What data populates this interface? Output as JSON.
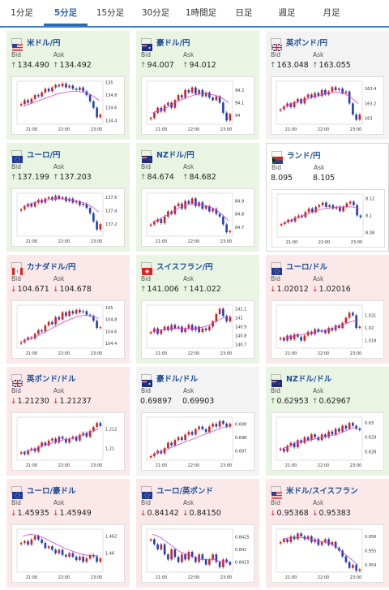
{
  "tabs": [
    {
      "label": "1分足",
      "active": false
    },
    {
      "label": "5分足",
      "active": true
    },
    {
      "label": "15分足",
      "active": false
    },
    {
      "label": "30分足",
      "active": false
    },
    {
      "label": "1時間足",
      "active": false
    },
    {
      "label": "日足",
      "active": false
    },
    {
      "label": "週足",
      "active": false
    },
    {
      "label": "月足",
      "active": false
    }
  ],
  "labels": {
    "bid": "Bid",
    "ask": "Ask"
  },
  "x_ticks": [
    "21:00",
    "22:00",
    "23:00"
  ],
  "colors": {
    "up": "#2e8b2e",
    "down": "#d02020",
    "candle_up": "#d42020",
    "candle_down": "#1f3fbf",
    "ma": "#cc44cc"
  },
  "pairs": [
    {
      "name": "米ドル/円",
      "flag": "us-flag",
      "trend": "up",
      "bid": "134.490",
      "ask": "134.492",
      "bid_dir": "up",
      "ask_dir": "up",
      "y_ticks": [
        "135",
        "134.8",
        "134.6",
        "134.4"
      ],
      "ylim": [
        134.34,
        135.02
      ],
      "closes": [
        134.66,
        134.72,
        134.68,
        134.74,
        134.8,
        134.78,
        134.84,
        134.9,
        134.86,
        134.92,
        134.96,
        134.94,
        134.98,
        134.92,
        134.95,
        134.9,
        134.88,
        134.92,
        134.86,
        134.8,
        134.7,
        134.6,
        134.45,
        134.49
      ],
      "ma": [
        134.62,
        134.66,
        134.7,
        134.74,
        134.78,
        134.82,
        134.84,
        134.86,
        134.86,
        134.84,
        134.8,
        134.72
      ]
    },
    {
      "name": "豪ドル/円",
      "flag": "au-flag",
      "trend": "up",
      "bid": "94.007",
      "ask": "94.012",
      "bid_dir": "up",
      "ask_dir": "up",
      "y_ticks": [
        "94.2",
        "94.1",
        "94"
      ],
      "ylim": [
        93.93,
        94.27
      ],
      "closes": [
        93.98,
        94.02,
        94.06,
        94.03,
        94.08,
        94.1,
        94.06,
        94.12,
        94.16,
        94.14,
        94.2,
        94.18,
        94.22,
        94.17,
        94.2,
        94.15,
        94.18,
        94.14,
        94.12,
        94.15,
        94.1,
        94.02,
        93.96,
        94.01
      ],
      "ma": [
        94.02,
        94.04,
        94.06,
        94.09,
        94.12,
        94.14,
        94.16,
        94.17,
        94.17,
        94.16,
        94.14,
        94.1
      ]
    },
    {
      "name": "英ポンド/円",
      "flag": "gb-flag",
      "trend": "flat",
      "bid": "163.048",
      "ask": "163.055",
      "bid_dir": "up",
      "ask_dir": "up",
      "y_ticks": [
        "163.4",
        "163.2",
        "163"
      ],
      "ylim": [
        162.92,
        163.5
      ],
      "closes": [
        163.12,
        163.16,
        163.2,
        163.15,
        163.22,
        163.26,
        163.2,
        163.28,
        163.32,
        163.28,
        163.34,
        163.3,
        163.38,
        163.32,
        163.36,
        163.42,
        163.38,
        163.4,
        163.34,
        163.36,
        163.2,
        163.05,
        162.98,
        163.05
      ],
      "ma": [
        163.14,
        163.18,
        163.21,
        163.24,
        163.27,
        163.3,
        163.32,
        163.34,
        163.35,
        163.33,
        163.28,
        163.2
      ]
    },
    {
      "name": "ユーロ/円",
      "flag": "eu-flag",
      "trend": "up",
      "bid": "137.199",
      "ask": "137.203",
      "bid_dir": "up",
      "ask_dir": "up",
      "y_ticks": [
        "137.6",
        "137.4",
        "137.2"
      ],
      "ylim": [
        137.02,
        137.66
      ],
      "closes": [
        137.42,
        137.46,
        137.5,
        137.46,
        137.52,
        137.56,
        137.52,
        137.58,
        137.6,
        137.56,
        137.62,
        137.58,
        137.6,
        137.54,
        137.58,
        137.52,
        137.54,
        137.48,
        137.5,
        137.44,
        137.36,
        137.24,
        137.12,
        137.2
      ],
      "ma": [
        137.46,
        137.5,
        137.53,
        137.55,
        137.57,
        137.58,
        137.57,
        137.56,
        137.54,
        137.51,
        137.46,
        137.38
      ]
    },
    {
      "name": "NZドル/円",
      "flag": "nz-flag",
      "trend": "up",
      "bid": "84.674",
      "ask": "84.682",
      "bid_dir": "up",
      "ask_dir": "up",
      "y_ticks": [
        "84.9",
        "84.8",
        "84.7"
      ],
      "ylim": [
        84.63,
        84.96
      ],
      "closes": [
        84.72,
        84.74,
        84.76,
        84.73,
        84.78,
        84.82,
        84.8,
        84.86,
        84.88,
        84.84,
        84.9,
        84.88,
        84.92,
        84.86,
        84.89,
        84.84,
        84.86,
        84.82,
        84.84,
        84.8,
        84.78,
        84.72,
        84.66,
        84.67
      ],
      "ma": [
        84.74,
        84.76,
        84.79,
        84.82,
        84.85,
        84.87,
        84.88,
        84.87,
        84.86,
        84.84,
        84.8,
        84.75
      ]
    },
    {
      "name": "ランド/円",
      "flag": "za-flag",
      "trend": "flat",
      "bid": "8.095",
      "ask": "8.105",
      "bid_dir": "none",
      "ask_dir": "none",
      "y_ticks": [
        "8.12",
        "8.1",
        "8.08"
      ],
      "ylim": [
        8.075,
        8.125
      ],
      "closes": [
        8.09,
        8.092,
        8.095,
        8.093,
        8.098,
        8.1,
        8.098,
        8.104,
        8.108,
        8.104,
        8.11,
        8.112,
        8.115,
        8.11,
        8.112,
        8.108,
        8.11,
        8.105,
        8.11,
        8.114,
        8.116,
        8.112,
        8.1,
        8.098
      ],
      "ma": [
        8.091,
        8.094,
        8.097,
        8.1,
        8.103,
        8.106,
        8.108,
        8.109,
        8.11,
        8.11,
        8.11,
        8.108
      ]
    },
    {
      "name": "カナダドル/円",
      "flag": "ca-flag",
      "trend": "down",
      "bid": "104.671",
      "ask": "104.678",
      "bid_dir": "down",
      "ask_dir": "down",
      "y_ticks": [
        "105",
        "104.8",
        "104.6",
        "104.4"
      ],
      "ylim": [
        104.32,
        105.04
      ],
      "closes": [
        104.42,
        104.46,
        104.5,
        104.48,
        104.56,
        104.62,
        104.6,
        104.7,
        104.76,
        104.72,
        104.84,
        104.8,
        104.92,
        104.86,
        104.94,
        104.9,
        104.96,
        104.92,
        104.94,
        104.88,
        104.86,
        104.78,
        104.66,
        104.67
      ],
      "ma": [
        104.44,
        104.48,
        104.52,
        104.58,
        104.64,
        104.7,
        104.76,
        104.81,
        104.85,
        104.87,
        104.86,
        104.82
      ]
    },
    {
      "name": "スイスフラン/円",
      "flag": "ch-flag",
      "trend": "up",
      "bid": "141.006",
      "ask": "141.022",
      "bid_dir": "up",
      "ask_dir": "up",
      "y_ticks": [
        "141.1",
        "141",
        "140.9",
        "140.8",
        "140.7"
      ],
      "ylim": [
        140.66,
        141.14
      ],
      "closes": [
        140.84,
        140.88,
        140.82,
        140.86,
        140.9,
        140.86,
        140.92,
        140.88,
        140.9,
        140.84,
        140.88,
        140.92,
        140.86,
        140.9,
        140.84,
        140.88,
        140.86,
        140.9,
        140.96,
        141.04,
        141.1,
        141.02,
        140.96,
        141.01
      ],
      "ma": [
        140.85,
        140.86,
        140.87,
        140.88,
        140.88,
        140.88,
        140.88,
        140.89,
        140.91,
        140.95,
        140.99,
        141.02
      ]
    },
    {
      "name": "ユーロ/ドル",
      "flag": "eu-flag",
      "trend": "down",
      "bid": "1.02012",
      "ask": "1.02016",
      "bid_dir": "down",
      "ask_dir": "down",
      "y_ticks": [
        "1.021",
        "1.02",
        "1.019"
      ],
      "ylim": [
        1.0184,
        1.0218
      ],
      "closes": [
        1.0192,
        1.019,
        1.0194,
        1.0191,
        1.0195,
        1.0193,
        1.019,
        1.0194,
        1.0197,
        1.0195,
        1.0199,
        1.0197,
        1.0198,
        1.0196,
        1.02,
        1.0198,
        1.0202,
        1.02,
        1.0204,
        1.0208,
        1.0212,
        1.021,
        1.02,
        1.0201
      ],
      "ma": [
        1.0192,
        1.0193,
        1.0194,
        1.0195,
        1.0196,
        1.0197,
        1.0198,
        1.0199,
        1.0201,
        1.0203,
        1.0205,
        1.0206
      ]
    },
    {
      "name": "英ポンド/ドル",
      "flag": "gb-flag",
      "trend": "down",
      "bid": "1.21230",
      "ask": "1.21237",
      "bid_dir": "down",
      "ask_dir": "down",
      "y_ticks": [
        "1.212",
        "1.21"
      ],
      "ylim": [
        1.2088,
        1.2132
      ],
      "closes": [
        1.2096,
        1.2094,
        1.2098,
        1.21,
        1.2097,
        1.2102,
        1.2106,
        1.2103,
        1.2108,
        1.211,
        1.2106,
        1.2112,
        1.211,
        1.2106,
        1.211,
        1.2112,
        1.2108,
        1.2114,
        1.2116,
        1.2112,
        1.2118,
        1.2122,
        1.2126,
        1.2123
      ],
      "ma": [
        1.2096,
        1.2098,
        1.21,
        1.2103,
        1.2105,
        1.2107,
        1.2109,
        1.211,
        1.2112,
        1.2114,
        1.2117,
        1.212
      ]
    },
    {
      "name": "豪ドル/ドル",
      "flag": "au-flag",
      "trend": "flat",
      "bid": "0.69897",
      "ask": "0.69903",
      "bid_dir": "none",
      "ask_dir": "none",
      "y_ticks": [
        "0.699",
        "0.698",
        "0.697"
      ],
      "ylim": [
        0.6963,
        0.6995
      ],
      "closes": [
        0.6966,
        0.6968,
        0.697,
        0.6968,
        0.6972,
        0.6976,
        0.6974,
        0.6978,
        0.698,
        0.6978,
        0.6982,
        0.6984,
        0.6982,
        0.6986,
        0.6988,
        0.6986,
        0.6984,
        0.6988,
        0.699,
        0.6988,
        0.6992,
        0.699,
        0.6988,
        0.699
      ],
      "ma": [
        0.6967,
        0.6969,
        0.6971,
        0.6973,
        0.6975,
        0.6977,
        0.6979,
        0.6981,
        0.6983,
        0.6985,
        0.6987,
        0.6988
      ]
    },
    {
      "name": "NZドル/ドル",
      "flag": "nz-flag",
      "trend": "up",
      "bid": "0.62953",
      "ask": "0.62967",
      "bid_dir": "up",
      "ask_dir": "up",
      "y_ticks": [
        "0.63",
        "0.629",
        "0.628"
      ],
      "ylim": [
        0.6274,
        0.6304
      ],
      "closes": [
        0.6282,
        0.628,
        0.6284,
        0.6286,
        0.6283,
        0.6288,
        0.6286,
        0.629,
        0.6288,
        0.6292,
        0.629,
        0.6288,
        0.6292,
        0.629,
        0.6294,
        0.6292,
        0.6296,
        0.6294,
        0.6298,
        0.6296,
        0.63,
        0.6298,
        0.6296,
        0.6295
      ],
      "ma": [
        0.6282,
        0.6284,
        0.6286,
        0.6287,
        0.6288,
        0.6289,
        0.629,
        0.6291,
        0.6292,
        0.6294,
        0.6296,
        0.6297
      ]
    },
    {
      "name": "ユーロ/豪ドル",
      "flag": "eu-flag",
      "trend": "down",
      "bid": "1.45935",
      "ask": "1.45949",
      "bid_dir": "down",
      "ask_dir": "down",
      "y_ticks": [
        "1.462",
        "1.46"
      ],
      "ylim": [
        1.4578,
        1.4628
      ],
      "closes": [
        1.4612,
        1.4614,
        1.461,
        1.4616,
        1.462,
        1.4616,
        1.4612,
        1.4606,
        1.4608,
        1.4604,
        1.46,
        1.4604,
        1.4598,
        1.4596,
        1.46,
        1.4596,
        1.4592,
        1.4596,
        1.459,
        1.4594,
        1.4598,
        1.4596,
        1.459,
        1.4594
      ],
      "ma": [
        1.462,
        1.4622,
        1.4621,
        1.4618,
        1.4614,
        1.461,
        1.4606,
        1.4603,
        1.46,
        1.4598,
        1.4597,
        1.4597
      ]
    },
    {
      "name": "ユーロ/英ポンド",
      "flag": "eu-flag",
      "trend": "down",
      "bid": "0.84142",
      "ask": "0.84150",
      "bid_dir": "down",
      "ask_dir": "down",
      "y_ticks": [
        "0.8425",
        "0.842",
        "0.8415"
      ],
      "ylim": [
        0.8411,
        0.8428
      ],
      "closes": [
        0.8424,
        0.8422,
        0.842,
        0.8422,
        0.8418,
        0.8416,
        0.842,
        0.8417,
        0.8415,
        0.8418,
        0.8416,
        0.8419,
        0.8417,
        0.8415,
        0.8418,
        0.8416,
        0.8414,
        0.8416,
        0.8418,
        0.8415,
        0.8413,
        0.8416,
        0.8415,
        0.8414
      ],
      "ma": [
        0.8426,
        0.8425,
        0.8423,
        0.8421,
        0.8419,
        0.8418,
        0.8417,
        0.8416,
        0.8416,
        0.8416,
        0.8415,
        0.8415
      ]
    },
    {
      "name": "米ドル/スイスフラン",
      "flag": "us-flag",
      "trend": "down",
      "bid": "0.95368",
      "ask": "0.95383",
      "bid_dir": "down",
      "ask_dir": "down",
      "y_ticks": [
        "0.956",
        "0.955",
        "0.954"
      ],
      "ylim": [
        0.9535,
        0.9565
      ],
      "closes": [
        0.9556,
        0.9558,
        0.9556,
        0.956,
        0.9558,
        0.9562,
        0.956,
        0.9558,
        0.956,
        0.9556,
        0.9558,
        0.9554,
        0.9556,
        0.9558,
        0.9554,
        0.9556,
        0.9552,
        0.955,
        0.9546,
        0.9542,
        0.9538,
        0.954,
        0.9536,
        0.9537
      ],
      "ma": [
        0.9558,
        0.9559,
        0.9559,
        0.9559,
        0.9558,
        0.9557,
        0.9556,
        0.9555,
        0.9552,
        0.9548,
        0.9544,
        0.954
      ]
    }
  ]
}
